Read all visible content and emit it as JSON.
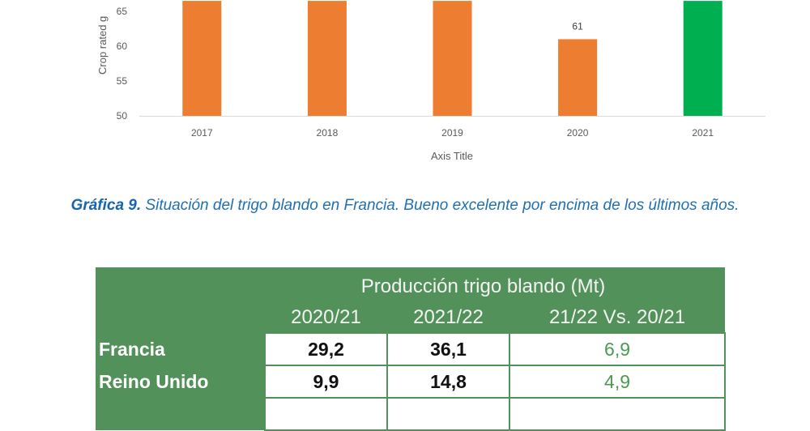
{
  "chart_data": {
    "type": "bar",
    "categories": [
      "2017",
      "2018",
      "2019",
      "2020",
      "2021"
    ],
    "values": [
      66.5,
      66.5,
      66.5,
      61,
      66.5
    ],
    "data_labels": [
      "",
      "",
      "",
      "61",
      ""
    ],
    "bar_colors": [
      "#ed7d31",
      "#ed7d31",
      "#ed7d31",
      "#ed7d31",
      "#00b050"
    ],
    "ylabel": "Crop rated g",
    "xlabel": "Axis Title",
    "ylim": [
      50,
      65
    ],
    "yticks": [
      "50",
      "55",
      "60",
      "65"
    ],
    "grid": false
  },
  "caption": {
    "label": "Gráfica 9.",
    "text": " Situación del trigo blando en Francia. Bueno excelente por encima de los últimos años."
  },
  "table": {
    "title": "Producción trigo blando (Mt)",
    "headers": [
      "2020/21",
      "2021/22",
      "21/22 Vs. 20/21"
    ],
    "rows": [
      {
        "country": "Francia",
        "v2020": "29,2",
        "v2021": "36,1",
        "diff": "6,9"
      },
      {
        "country": "Reino Unido",
        "v2020": "9,9",
        "v2021": "14,8",
        "diff": "4,9"
      }
    ]
  }
}
